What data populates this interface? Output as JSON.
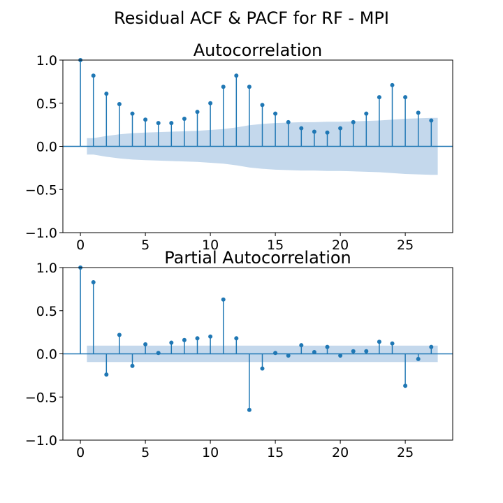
{
  "figure": {
    "suptitle": "Residual ACF & PACF for RF - MPI"
  },
  "chart_data": [
    {
      "type": "stem",
      "title": "Autocorrelation",
      "xlabel": "",
      "ylabel": "",
      "xlim": [
        -1.35,
        28.65
      ],
      "ylim": [
        -1.0,
        1.0
      ],
      "xticks": [
        0,
        5,
        10,
        15,
        20,
        25
      ],
      "yticks": [
        1.0,
        0.5,
        0.0,
        -0.5,
        -1.0
      ],
      "xtick_labels": [
        "0",
        "5",
        "10",
        "15",
        "20",
        "25"
      ],
      "ytick_labels": [
        "1.0",
        "0.5",
        "0.0",
        "−0.5",
        "−1.0"
      ],
      "grid": false,
      "lags": [
        0,
        1,
        2,
        3,
        4,
        5,
        6,
        7,
        8,
        9,
        10,
        11,
        12,
        13,
        14,
        15,
        16,
        17,
        18,
        19,
        20,
        21,
        22,
        23,
        24,
        25,
        26,
        27
      ],
      "values": [
        1.0,
        0.82,
        0.61,
        0.49,
        0.38,
        0.31,
        0.27,
        0.27,
        0.32,
        0.4,
        0.5,
        0.69,
        0.82,
        0.69,
        0.48,
        0.38,
        0.28,
        0.21,
        0.17,
        0.16,
        0.21,
        0.28,
        0.38,
        0.57,
        0.71,
        0.57,
        0.39,
        0.3
      ],
      "confidence_band": {
        "lags": [
          0.5,
          1,
          2,
          3,
          4,
          5,
          6,
          7,
          8,
          9,
          10,
          11,
          12,
          13,
          14,
          15,
          16,
          17,
          18,
          19,
          20,
          21,
          22,
          23,
          24,
          25,
          26,
          27,
          27.5
        ],
        "upper": [
          0.095,
          0.095,
          0.12,
          0.14,
          0.153,
          0.16,
          0.165,
          0.17,
          0.175,
          0.18,
          0.19,
          0.2,
          0.22,
          0.245,
          0.26,
          0.27,
          0.275,
          0.28,
          0.28,
          0.285,
          0.285,
          0.29,
          0.295,
          0.3,
          0.31,
          0.32,
          0.325,
          0.33,
          0.33
        ]
      },
      "colors": {
        "stem": "#1f77b4",
        "band": "#c4d8ec",
        "axis_line": "#1f77b4"
      }
    },
    {
      "type": "stem",
      "title": "Partial Autocorrelation",
      "xlabel": "",
      "ylabel": "",
      "xlim": [
        -1.35,
        28.65
      ],
      "ylim": [
        -1.0,
        1.0
      ],
      "xticks": [
        0,
        5,
        10,
        15,
        20,
        25
      ],
      "yticks": [
        1.0,
        0.5,
        0.0,
        -0.5,
        -1.0
      ],
      "xtick_labels": [
        "0",
        "5",
        "10",
        "15",
        "20",
        "25"
      ],
      "ytick_labels": [
        "1.0",
        "0.5",
        "0.0",
        "−0.5",
        "−1.0"
      ],
      "grid": false,
      "lags": [
        0,
        1,
        2,
        3,
        4,
        5,
        6,
        7,
        8,
        9,
        10,
        11,
        12,
        13,
        14,
        15,
        16,
        17,
        18,
        19,
        20,
        21,
        22,
        23,
        24,
        25,
        26,
        27
      ],
      "values": [
        1.0,
        0.83,
        -0.24,
        0.22,
        -0.14,
        0.11,
        0.01,
        0.13,
        0.16,
        0.18,
        0.2,
        0.63,
        0.18,
        -0.65,
        -0.17,
        0.01,
        -0.02,
        0.1,
        0.02,
        0.08,
        -0.02,
        0.03,
        0.03,
        0.14,
        0.12,
        -0.37,
        -0.06,
        0.08
      ],
      "confidence_band": {
        "lags": [
          0.5,
          27.5
        ],
        "upper": [
          0.095,
          0.095
        ]
      },
      "colors": {
        "stem": "#1f77b4",
        "band": "#c4d8ec",
        "axis_line": "#1f77b4"
      }
    }
  ]
}
